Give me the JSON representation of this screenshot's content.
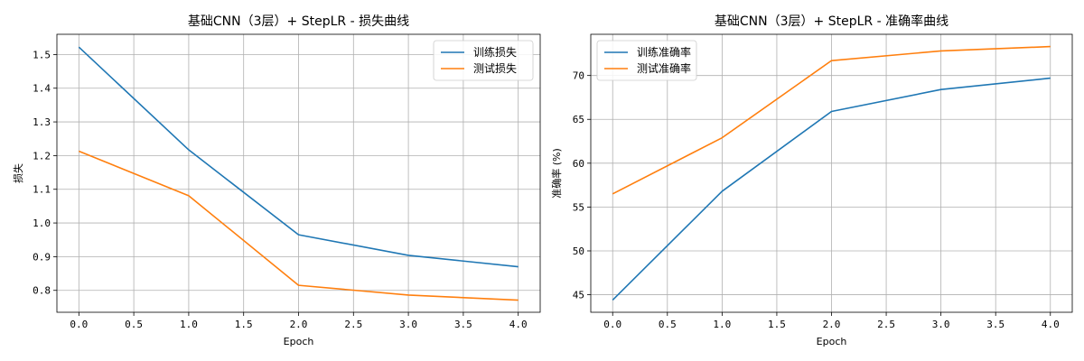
{
  "chart_data": [
    {
      "type": "line",
      "title": "基础CNN（3层）+ StepLR - 损失曲线",
      "xlabel": "Epoch",
      "ylabel": "损失",
      "x": [
        0,
        1,
        2,
        3,
        4
      ],
      "xlim": [
        -0.2,
        4.2
      ],
      "ylim": [
        0.735,
        1.56
      ],
      "xticks": [
        0,
        0.5,
        1,
        1.5,
        2,
        2.5,
        3,
        3.5,
        4
      ],
      "xtick_labels": [
        "0.0",
        "0.5",
        "1.0",
        "1.5",
        "2.0",
        "2.5",
        "3.0",
        "3.5",
        "4.0"
      ],
      "yticks": [
        0.8,
        0.9,
        1.0,
        1.1,
        1.2,
        1.3,
        1.4,
        1.5
      ],
      "ytick_labels": [
        "0.8",
        "0.9",
        "1.0",
        "1.1",
        "1.2",
        "1.3",
        "1.4",
        "1.5"
      ],
      "grid": true,
      "legend_position": "top-right",
      "series": [
        {
          "name": "训练损失",
          "color": "#1f77b4",
          "values": [
            1.522,
            1.217,
            0.965,
            0.904,
            0.87
          ]
        },
        {
          "name": "测试损失",
          "color": "#ff7f0e",
          "values": [
            1.213,
            1.081,
            0.815,
            0.786,
            0.771
          ]
        }
      ]
    },
    {
      "type": "line",
      "title": "基础CNN（3层）+ StepLR - 准确率曲线",
      "xlabel": "Epoch",
      "ylabel": "准确率 (%)",
      "x": [
        0,
        1,
        2,
        3,
        4
      ],
      "xlim": [
        -0.2,
        4.2
      ],
      "ylim": [
        43.0,
        74.7
      ],
      "xticks": [
        0,
        0.5,
        1,
        1.5,
        2,
        2.5,
        3,
        3.5,
        4
      ],
      "xtick_labels": [
        "0.0",
        "0.5",
        "1.0",
        "1.5",
        "2.0",
        "2.5",
        "3.0",
        "3.5",
        "4.0"
      ],
      "yticks": [
        45,
        50,
        55,
        60,
        65,
        70
      ],
      "ytick_labels": [
        "45",
        "50",
        "55",
        "60",
        "65",
        "70"
      ],
      "grid": true,
      "legend_position": "top-left",
      "series": [
        {
          "name": "训练准确率",
          "color": "#1f77b4",
          "values": [
            44.4,
            56.8,
            65.9,
            68.4,
            69.7
          ]
        },
        {
          "name": "测试准确率",
          "color": "#ff7f0e",
          "values": [
            56.5,
            62.9,
            71.7,
            72.8,
            73.3
          ]
        }
      ]
    }
  ]
}
